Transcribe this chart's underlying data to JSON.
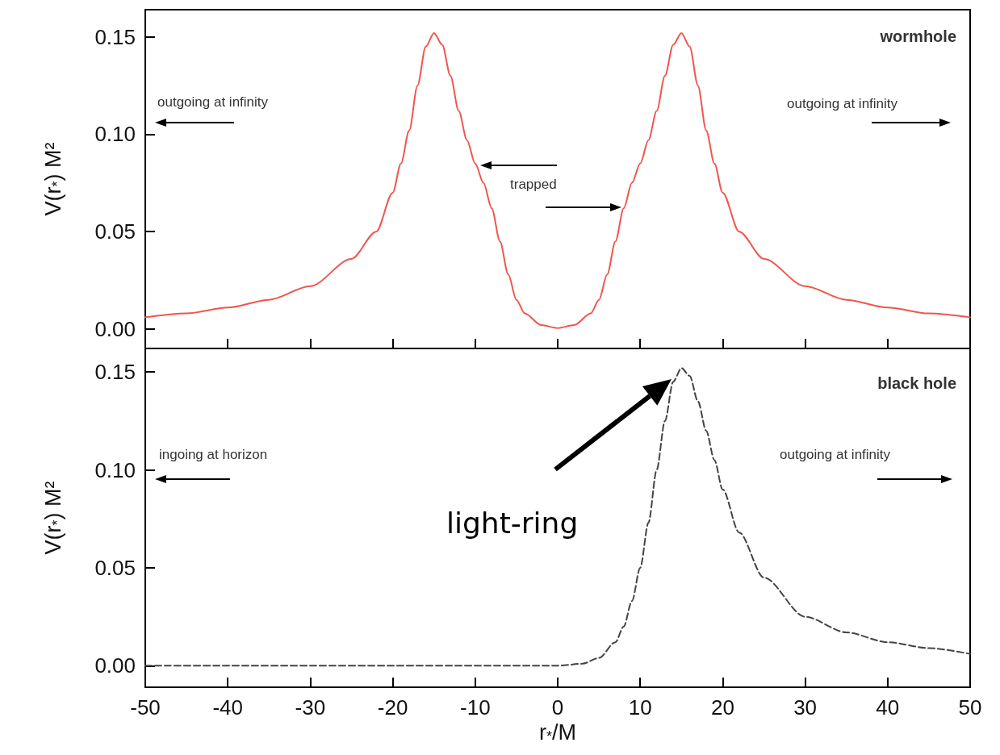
{
  "chart_data": [
    {
      "type": "line",
      "ylabel": "V(r$_{*}$) M²",
      "annotations": [
        "wormhole",
        "outgoing at infinity",
        "outgoing at infinity",
        "trapped"
      ],
      "x": [
        -50,
        -45,
        -40,
        -35,
        -30,
        -25,
        -22,
        -20,
        -19,
        -18,
        -17,
        -16,
        -15,
        -14,
        -13,
        -12,
        -11,
        -10,
        -9,
        -8,
        -7,
        -6,
        -5,
        -4,
        -2,
        0,
        2,
        4,
        5,
        6,
        7,
        8,
        9,
        10,
        11,
        12,
        13,
        14,
        15,
        16,
        17,
        18,
        19,
        20,
        22,
        25,
        30,
        35,
        40,
        45,
        50
      ],
      "values": [
        0.006,
        0.008,
        0.011,
        0.015,
        0.022,
        0.036,
        0.05,
        0.07,
        0.085,
        0.102,
        0.125,
        0.145,
        0.152,
        0.146,
        0.13,
        0.112,
        0.097,
        0.085,
        0.075,
        0.062,
        0.045,
        0.028,
        0.015,
        0.008,
        0.002,
        0.0005,
        0.002,
        0.008,
        0.015,
        0.028,
        0.045,
        0.062,
        0.075,
        0.085,
        0.097,
        0.112,
        0.13,
        0.146,
        0.152,
        0.145,
        0.125,
        0.102,
        0.085,
        0.07,
        0.05,
        0.036,
        0.022,
        0.015,
        0.011,
        0.008,
        0.006
      ],
      "color": "#f0554d",
      "line_style": "solid",
      "marker": "none",
      "xlim": [
        -50,
        50
      ],
      "xticks": [
        -50,
        -40,
        -30,
        -20,
        -10,
        0,
        10,
        20,
        30,
        40,
        50
      ],
      "ylim": [
        -0.01,
        0.164
      ],
      "yticks": [
        {
          "value": 0,
          "label": "0.00"
        },
        {
          "value": 0.05,
          "label": "0.05"
        },
        {
          "value": 0.1,
          "label": "0.10"
        },
        {
          "value": 0.15,
          "label": "0.15"
        }
      ],
      "tick_labels": "y"
    },
    {
      "type": "line",
      "ylabel": "V(r$_{*}$) M²",
      "xlabel": "r$_{*}$/M",
      "annotations": [
        "black hole",
        "ingoing at horizon",
        "outgoing at infinity",
        "light-ring"
      ],
      "x": [
        -50,
        -40,
        -30,
        -20,
        -10,
        0,
        3,
        5,
        7,
        8,
        9,
        10,
        11,
        12,
        13,
        14,
        15,
        16,
        17,
        18,
        19,
        20,
        22,
        25,
        30,
        35,
        40,
        45,
        50
      ],
      "values": [
        0,
        0,
        0,
        0,
        0,
        0,
        0.001,
        0.004,
        0.012,
        0.02,
        0.033,
        0.05,
        0.073,
        0.1,
        0.125,
        0.145,
        0.152,
        0.148,
        0.135,
        0.12,
        0.105,
        0.09,
        0.068,
        0.045,
        0.025,
        0.017,
        0.012,
        0.009,
        0.006
      ],
      "color": "#444444",
      "line_style": "dashed",
      "marker": "none",
      "xlim": [
        -50,
        50
      ],
      "xticks": [
        -50,
        -40,
        -30,
        -20,
        -10,
        0,
        10,
        20,
        30,
        40,
        50
      ],
      "ylim": [
        -0.011,
        0.162
      ],
      "yticks": [
        {
          "value": 0,
          "label": "0.00"
        },
        {
          "value": 0.05,
          "label": "0.05"
        },
        {
          "value": 0.1,
          "label": "0.10"
        },
        {
          "value": 0.15,
          "label": "0.15"
        }
      ]
    }
  ]
}
